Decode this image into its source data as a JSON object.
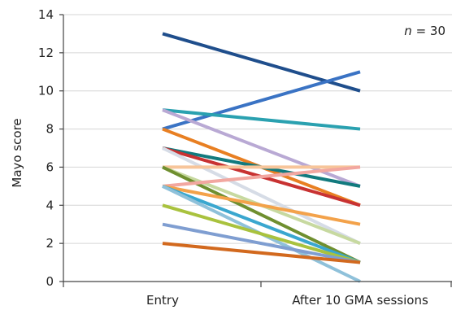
{
  "chart_data": {
    "type": "line",
    "title": "",
    "xlabel": "",
    "ylabel": "Mayo score",
    "annotation": {
      "italic_part": "n",
      "rest": " = 30"
    },
    "categories": [
      "Entry",
      "After 10 GMA sessions"
    ],
    "ylim": [
      0,
      14
    ],
    "yticks": [
      0,
      2,
      4,
      6,
      8,
      10,
      12,
      14
    ],
    "ytick_labels": [
      "0",
      "2",
      "4",
      "6",
      "8",
      "10",
      "12",
      "14"
    ],
    "grid": true,
    "legend": "none",
    "series": [
      {
        "values": [
          13,
          10
        ],
        "color": "#1f4e8c"
      },
      {
        "values": [
          8,
          11
        ],
        "color": "#3a73c4"
      },
      {
        "values": [
          9,
          8
        ],
        "color": "#2aa1b0"
      },
      {
        "values": [
          9,
          5
        ],
        "color": "#b9a9d4"
      },
      {
        "values": [
          8,
          4
        ],
        "color": "#e87f22"
      },
      {
        "values": [
          7,
          5
        ],
        "color": "#127a7e"
      },
      {
        "values": [
          7,
          4
        ],
        "color": "#c83232"
      },
      {
        "values": [
          7,
          2
        ],
        "color": "#d6dce6"
      },
      {
        "values": [
          6,
          6
        ],
        "color": "#f7c59a"
      },
      {
        "values": [
          6,
          2
        ],
        "color": "#c7d9a0"
      },
      {
        "values": [
          6,
          1
        ],
        "color": "#6f8f2f"
      },
      {
        "values": [
          5,
          6
        ],
        "color": "#f2a7a0"
      },
      {
        "values": [
          5,
          3
        ],
        "color": "#f3a24a"
      },
      {
        "values": [
          5,
          1
        ],
        "color": "#3aa7cf"
      },
      {
        "values": [
          5,
          0
        ],
        "color": "#8fc1da"
      },
      {
        "values": [
          4,
          1
        ],
        "color": "#a9c23e"
      },
      {
        "values": [
          3,
          1
        ],
        "color": "#7f9ed1"
      },
      {
        "values": [
          2,
          1
        ],
        "color": "#d2691e"
      }
    ]
  }
}
